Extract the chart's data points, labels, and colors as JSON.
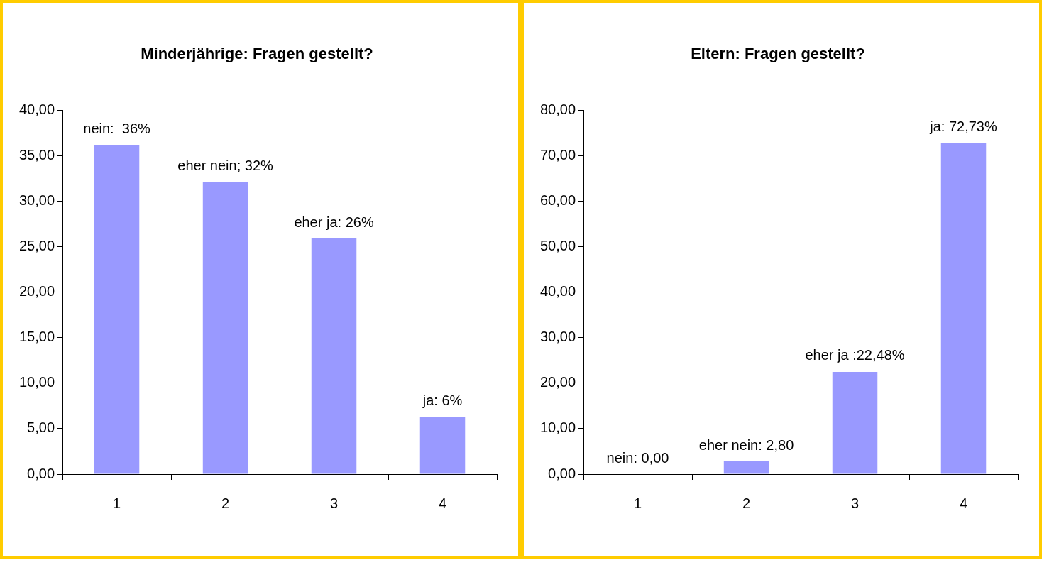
{
  "chart_data": [
    {
      "type": "bar",
      "title": "Minderjährige: Fragen gestellt?",
      "categories": [
        "1",
        "2",
        "3",
        "4"
      ],
      "values": [
        36.2,
        32.1,
        25.9,
        6.3
      ],
      "value_labels": [
        "nein:  36%",
        "eher nein; 32%",
        "eher ja: 26%",
        "ja: 6%"
      ],
      "color": "#9999ff",
      "ylim": [
        0,
        40
      ],
      "yticks": [
        {
          "value": 0,
          "label": "0,00"
        },
        {
          "value": 5,
          "label": "5,00"
        },
        {
          "value": 10,
          "label": "10,00"
        },
        {
          "value": 15,
          "label": "15,00"
        },
        {
          "value": 20,
          "label": "20,00"
        },
        {
          "value": 25,
          "label": "25,00"
        },
        {
          "value": 30,
          "label": "30,00"
        },
        {
          "value": 35,
          "label": "35,00"
        },
        {
          "value": 40,
          "label": "40,00"
        }
      ],
      "grid": false,
      "legend": false
    },
    {
      "type": "bar",
      "title": "Eltern: Fragen gestellt?",
      "categories": [
        "1",
        "2",
        "3",
        "4"
      ],
      "values": [
        0,
        2.8,
        22.48,
        72.73
      ],
      "value_labels": [
        "nein: 0,00",
        "eher nein: 2,80",
        "eher ja :22,48%",
        "ja: 72,73%"
      ],
      "color": "#9999ff",
      "ylim": [
        0,
        80
      ],
      "yticks": [
        {
          "value": 0,
          "label": "0,00"
        },
        {
          "value": 10,
          "label": "10,00"
        },
        {
          "value": 20,
          "label": "20,00"
        },
        {
          "value": 30,
          "label": "30,00"
        },
        {
          "value": 40,
          "label": "40,00"
        },
        {
          "value": 50,
          "label": "50,00"
        },
        {
          "value": 60,
          "label": "60,00"
        },
        {
          "value": 70,
          "label": "70,00"
        },
        {
          "value": 80,
          "label": "80,00"
        }
      ],
      "grid": false,
      "legend": false
    }
  ]
}
